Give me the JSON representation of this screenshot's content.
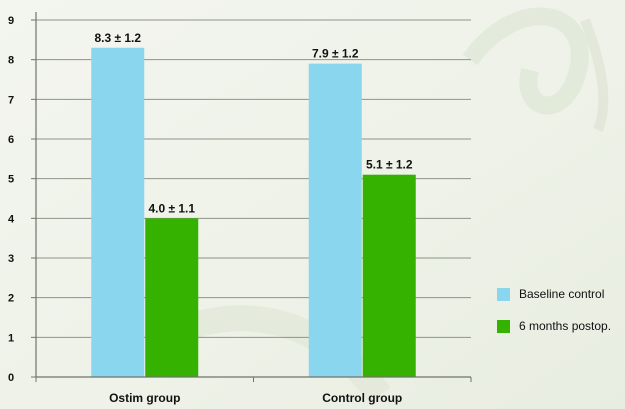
{
  "chart_data": {
    "type": "bar",
    "categories": [
      "Ostim group",
      "Control group"
    ],
    "series": [
      {
        "name": "Baseline control",
        "values": [
          8.3,
          7.9
        ],
        "labels": [
          "8.3 ± 1.2",
          "7.9 ± 1.2"
        ],
        "color": "#8ad6ef"
      },
      {
        "name": "6 months postop.",
        "values": [
          4.0,
          5.1
        ],
        "labels": [
          "4.0 ± 1.1",
          "5.1 ± 1.2"
        ],
        "color": "#35b100"
      }
    ],
    "yticks": [
      0,
      1,
      2,
      3,
      4,
      5,
      6,
      7,
      8,
      9
    ],
    "ylim": [
      0,
      9
    ],
    "grid": true,
    "legend_position": "right",
    "title": "",
    "xlabel": "",
    "ylabel": ""
  }
}
